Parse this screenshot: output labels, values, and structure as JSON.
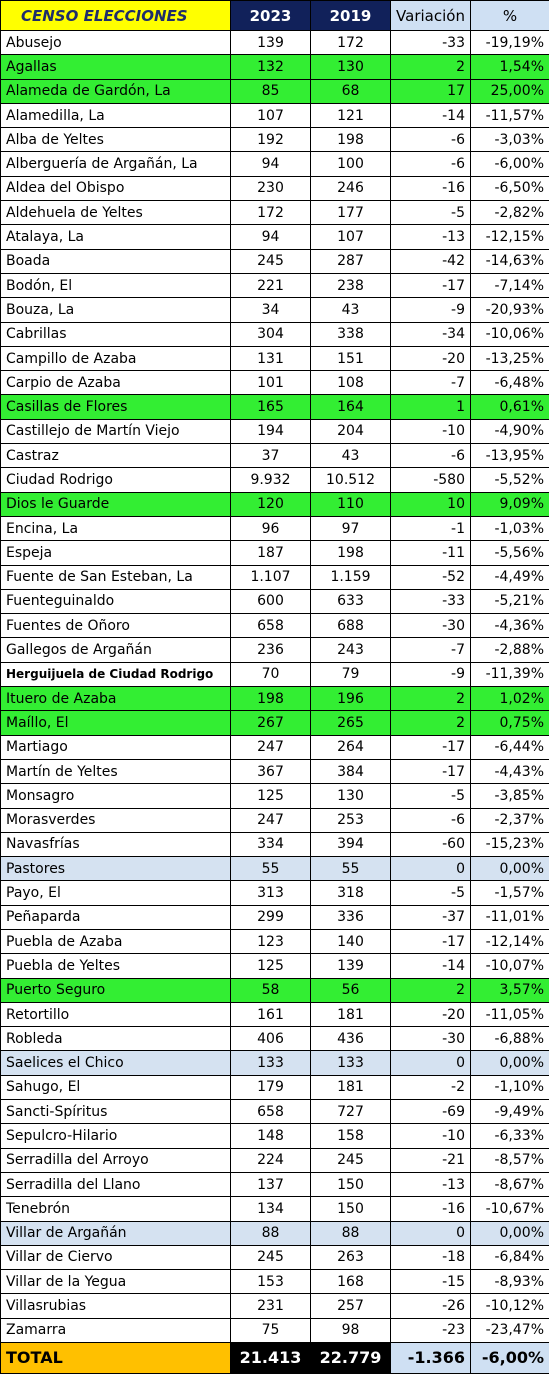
{
  "header": {
    "title": "CENSO ELECCIONES",
    "col_2023": "2023",
    "col_2019": "2019",
    "col_var": "Variación",
    "col_pct": "%"
  },
  "rows": [
    {
      "name": "Abusejo",
      "y2023": "139",
      "y2019": "172",
      "var": "-33",
      "pct": "-19,19%",
      "hl": ""
    },
    {
      "name": "Agallas",
      "y2023": "132",
      "y2019": "130",
      "var": "2",
      "pct": "1,54%",
      "hl": "green"
    },
    {
      "name": "Alameda de Gardón, La",
      "y2023": "85",
      "y2019": "68",
      "var": "17",
      "pct": "25,00%",
      "hl": "green"
    },
    {
      "name": "Alamedilla, La",
      "y2023": "107",
      "y2019": "121",
      "var": "-14",
      "pct": "-11,57%",
      "hl": ""
    },
    {
      "name": "Alba de Yeltes",
      "y2023": "192",
      "y2019": "198",
      "var": "-6",
      "pct": "-3,03%",
      "hl": ""
    },
    {
      "name": "Alberguería de Argañán, La",
      "y2023": "94",
      "y2019": "100",
      "var": "-6",
      "pct": "-6,00%",
      "hl": ""
    },
    {
      "name": "Aldea del Obispo",
      "y2023": "230",
      "y2019": "246",
      "var": "-16",
      "pct": "-6,50%",
      "hl": ""
    },
    {
      "name": "Aldehuela de Yeltes",
      "y2023": "172",
      "y2019": "177",
      "var": "-5",
      "pct": "-2,82%",
      "hl": ""
    },
    {
      "name": "Atalaya, La",
      "y2023": "94",
      "y2019": "107",
      "var": "-13",
      "pct": "-12,15%",
      "hl": ""
    },
    {
      "name": "Boada",
      "y2023": "245",
      "y2019": "287",
      "var": "-42",
      "pct": "-14,63%",
      "hl": ""
    },
    {
      "name": "Bodón, El",
      "y2023": "221",
      "y2019": "238",
      "var": "-17",
      "pct": "-7,14%",
      "hl": ""
    },
    {
      "name": "Bouza, La",
      "y2023": "34",
      "y2019": "43",
      "var": "-9",
      "pct": "-20,93%",
      "hl": ""
    },
    {
      "name": "Cabrillas",
      "y2023": "304",
      "y2019": "338",
      "var": "-34",
      "pct": "-10,06%",
      "hl": ""
    },
    {
      "name": "Campillo de Azaba",
      "y2023": "131",
      "y2019": "151",
      "var": "-20",
      "pct": "-13,25%",
      "hl": ""
    },
    {
      "name": "Carpio de Azaba",
      "y2023": "101",
      "y2019": "108",
      "var": "-7",
      "pct": "-6,48%",
      "hl": ""
    },
    {
      "name": "Casillas de Flores",
      "y2023": "165",
      "y2019": "164",
      "var": "1",
      "pct": "0,61%",
      "hl": "green"
    },
    {
      "name": "Castillejo de Martín Viejo",
      "y2023": "194",
      "y2019": "204",
      "var": "-10",
      "pct": "-4,90%",
      "hl": ""
    },
    {
      "name": "Castraz",
      "y2023": "37",
      "y2019": "43",
      "var": "-6",
      "pct": "-13,95%",
      "hl": ""
    },
    {
      "name": "Ciudad Rodrigo",
      "y2023": "9.932",
      "y2019": "10.512",
      "var": "-580",
      "pct": "-5,52%",
      "hl": ""
    },
    {
      "name": "Dios le Guarde",
      "y2023": "120",
      "y2019": "110",
      "var": "10",
      "pct": "9,09%",
      "hl": "green"
    },
    {
      "name": "Encina, La",
      "y2023": "96",
      "y2019": "97",
      "var": "-1",
      "pct": "-1,03%",
      "hl": ""
    },
    {
      "name": "Espeja",
      "y2023": "187",
      "y2019": "198",
      "var": "-11",
      "pct": "-5,56%",
      "hl": ""
    },
    {
      "name": "Fuente de San Esteban, La",
      "y2023": "1.107",
      "y2019": "1.159",
      "var": "-52",
      "pct": "-4,49%",
      "hl": ""
    },
    {
      "name": "Fuenteguinaldo",
      "y2023": "600",
      "y2019": "633",
      "var": "-33",
      "pct": "-5,21%",
      "hl": ""
    },
    {
      "name": "Fuentes de Oñoro",
      "y2023": "658",
      "y2019": "688",
      "var": "-30",
      "pct": "-4,36%",
      "hl": ""
    },
    {
      "name": "Gallegos de Argañán",
      "y2023": "236",
      "y2019": "243",
      "var": "-7",
      "pct": "-2,88%",
      "hl": ""
    },
    {
      "name": "Herguijuela de Ciudad Rodrigo",
      "y2023": "70",
      "y2019": "79",
      "var": "-9",
      "pct": "-11,39%",
      "hl": "",
      "small": true
    },
    {
      "name": "Ituero de Azaba",
      "y2023": "198",
      "y2019": "196",
      "var": "2",
      "pct": "1,02%",
      "hl": "green"
    },
    {
      "name": "Maíllo, El",
      "y2023": "267",
      "y2019": "265",
      "var": "2",
      "pct": "0,75%",
      "hl": "green"
    },
    {
      "name": "Martiago",
      "y2023": "247",
      "y2019": "264",
      "var": "-17",
      "pct": "-6,44%",
      "hl": ""
    },
    {
      "name": "Martín de Yeltes",
      "y2023": "367",
      "y2019": "384",
      "var": "-17",
      "pct": "-4,43%",
      "hl": ""
    },
    {
      "name": "Monsagro",
      "y2023": "125",
      "y2019": "130",
      "var": "-5",
      "pct": "-3,85%",
      "hl": ""
    },
    {
      "name": "Morasverdes",
      "y2023": "247",
      "y2019": "253",
      "var": "-6",
      "pct": "-2,37%",
      "hl": ""
    },
    {
      "name": "Navasfrías",
      "y2023": "334",
      "y2019": "394",
      "var": "-60",
      "pct": "-15,23%",
      "hl": ""
    },
    {
      "name": "Pastores",
      "y2023": "55",
      "y2019": "55",
      "var": "0",
      "pct": "0,00%",
      "hl": "blue"
    },
    {
      "name": "Payo, El",
      "y2023": "313",
      "y2019": "318",
      "var": "-5",
      "pct": "-1,57%",
      "hl": ""
    },
    {
      "name": "Peñaparda",
      "y2023": "299",
      "y2019": "336",
      "var": "-37",
      "pct": "-11,01%",
      "hl": ""
    },
    {
      "name": "Puebla de Azaba",
      "y2023": "123",
      "y2019": "140",
      "var": "-17",
      "pct": "-12,14%",
      "hl": ""
    },
    {
      "name": "Puebla de Yeltes",
      "y2023": "125",
      "y2019": "139",
      "var": "-14",
      "pct": "-10,07%",
      "hl": ""
    },
    {
      "name": "Puerto Seguro",
      "y2023": "58",
      "y2019": "56",
      "var": "2",
      "pct": "3,57%",
      "hl": "green"
    },
    {
      "name": "Retortillo",
      "y2023": "161",
      "y2019": "181",
      "var": "-20",
      "pct": "-11,05%",
      "hl": ""
    },
    {
      "name": "Robleda",
      "y2023": "406",
      "y2019": "436",
      "var": "-30",
      "pct": "-6,88%",
      "hl": ""
    },
    {
      "name": "Saelices el Chico",
      "y2023": "133",
      "y2019": "133",
      "var": "0",
      "pct": "0,00%",
      "hl": "blue"
    },
    {
      "name": "Sahugo, El",
      "y2023": "179",
      "y2019": "181",
      "var": "-2",
      "pct": "-1,10%",
      "hl": ""
    },
    {
      "name": "Sancti-Spíritus",
      "y2023": "658",
      "y2019": "727",
      "var": "-69",
      "pct": "-9,49%",
      "hl": ""
    },
    {
      "name": "Sepulcro-Hilario",
      "y2023": "148",
      "y2019": "158",
      "var": "-10",
      "pct": "-6,33%",
      "hl": ""
    },
    {
      "name": "Serradilla del Arroyo",
      "y2023": "224",
      "y2019": "245",
      "var": "-21",
      "pct": "-8,57%",
      "hl": ""
    },
    {
      "name": "Serradilla del Llano",
      "y2023": "137",
      "y2019": "150",
      "var": "-13",
      "pct": "-8,67%",
      "hl": ""
    },
    {
      "name": "Tenebrón",
      "y2023": "134",
      "y2019": "150",
      "var": "-16",
      "pct": "-10,67%",
      "hl": ""
    },
    {
      "name": "Villar de Argañán",
      "y2023": "88",
      "y2019": "88",
      "var": "0",
      "pct": "0,00%",
      "hl": "blue"
    },
    {
      "name": "Villar de Ciervo",
      "y2023": "245",
      "y2019": "263",
      "var": "-18",
      "pct": "-6,84%",
      "hl": ""
    },
    {
      "name": "Villar de la Yegua",
      "y2023": "153",
      "y2019": "168",
      "var": "-15",
      "pct": "-8,93%",
      "hl": ""
    },
    {
      "name": "Villasrubias",
      "y2023": "231",
      "y2019": "257",
      "var": "-26",
      "pct": "-10,12%",
      "hl": ""
    },
    {
      "name": "Zamarra",
      "y2023": "75",
      "y2019": "98",
      "var": "-23",
      "pct": "-23,47%",
      "hl": ""
    }
  ],
  "total": {
    "label": "TOTAL",
    "y2023": "21.413",
    "y2019": "22.779",
    "var": "-1.366",
    "pct": "-6,00%"
  },
  "colors": {
    "green_highlight": "#33ee33",
    "blue_highlight": "#d5e2f1",
    "title_bg": "#ffff00",
    "year_bg": "#11215a",
    "total_label_bg": "#ffc000"
  }
}
